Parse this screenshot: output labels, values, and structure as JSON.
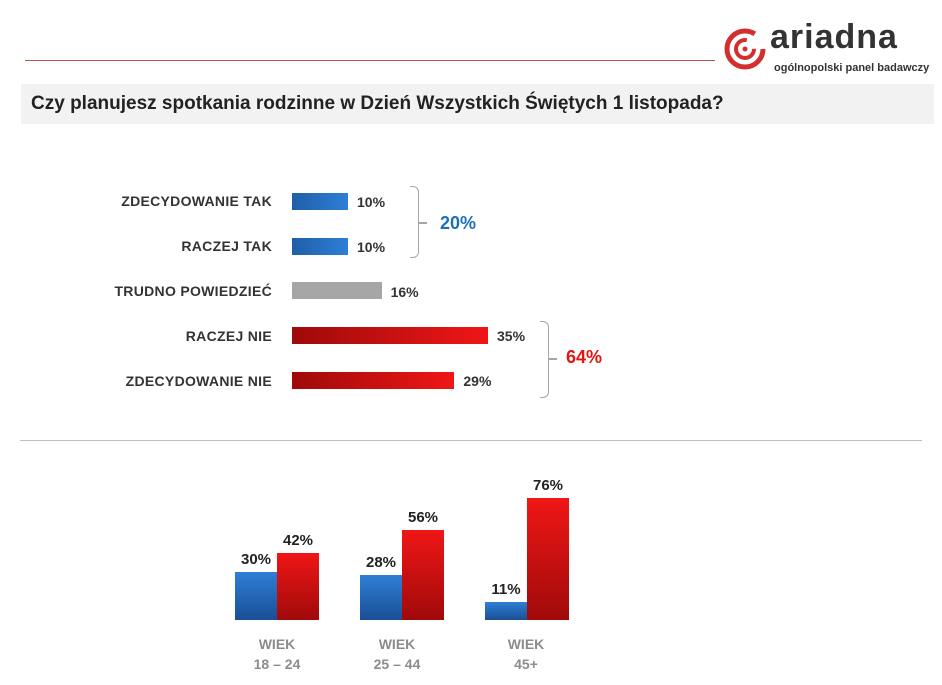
{
  "logo": {
    "name": "ariadna",
    "tagline": "ogólnopolski panel badawczy"
  },
  "question": "Czy planujesz spotkania rodzinne w Dzień Wszystkich Świętych 1  listopada?",
  "colors": {
    "positive": "#2e7fd6",
    "neutral": "#a6a6a6",
    "negative": "#e31414",
    "accent": "#c0504d"
  },
  "chart_data": [
    {
      "type": "bar",
      "orientation": "horizontal",
      "categories": [
        "ZDECYDOWANIE  TAK",
        "RACZEJ TAK",
        "TRUDNO  POWIEDZIEĆ",
        "RACZEJ NIE",
        "ZDECYDOWANIE  NIE"
      ],
      "values": [
        10,
        10,
        16,
        35,
        29
      ],
      "value_labels": [
        "10%",
        "10%",
        "16%",
        "35%",
        "29%"
      ],
      "groups": [
        {
          "label": "20%",
          "members": [
            "ZDECYDOWANIE  TAK",
            "RACZEJ TAK"
          ],
          "color": "#1f6fb8"
        },
        {
          "label": "64%",
          "members": [
            "RACZEJ NIE",
            "ZDECYDOWANIE  NIE"
          ],
          "color": "#e31414"
        }
      ]
    },
    {
      "type": "bar",
      "orientation": "vertical",
      "categories": [
        {
          "line1": "WIEK",
          "line2": "18 – 24"
        },
        {
          "line1": "WIEK",
          "line2": "25 – 44"
        },
        {
          "line1": "WIEK",
          "line2": "45+"
        }
      ],
      "series": [
        {
          "values": [
            30,
            28,
            11
          ],
          "labels": [
            "30%",
            "28%",
            "11%"
          ],
          "color": "#2e7fd6"
        },
        {
          "values": [
            42,
            56,
            76
          ],
          "labels": [
            "42%",
            "56%",
            "76%"
          ],
          "color": "#e31414"
        }
      ]
    }
  ]
}
